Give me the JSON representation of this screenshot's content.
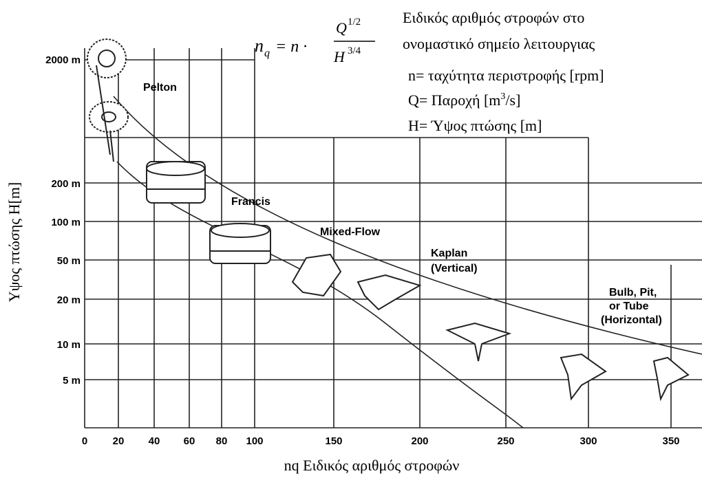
{
  "formula": {
    "lhs": "n",
    "lhs_sub": "q",
    "eq": "= n ·",
    "num": "Q",
    "num_exp": "1/2",
    "den": "H",
    "den_exp": "3/4"
  },
  "notes": {
    "line1": "Ειδικός αριθμός στροφών στο",
    "line2": "ονομαστικό σημείο λειτουργιας",
    "n": "n= ταχύτητα περιστροφής [rpm]",
    "q_pre": "Q= Παροχή [m",
    "q_exp": "3",
    "q_post": "/s]",
    "h": "H= Ύψος πτώσης [m]"
  },
  "y_axis": {
    "label": "Υψος πτώσης H[m]",
    "ticks": [
      "2000 m",
      "200 m",
      "100 m",
      "50 m",
      "20 m",
      "10 m",
      "5 m"
    ]
  },
  "x_axis": {
    "label": "nq Ειδικός αριθμός στροφών",
    "ticks": [
      "0",
      "20",
      "40",
      "60",
      "80",
      "100",
      "150",
      "200",
      "250",
      "300",
      "350"
    ]
  },
  "regions": {
    "pelton": "Pelton",
    "francis": "Francis",
    "mixed": "Mixed-Flow",
    "kaplan1": "Kaplan",
    "kaplan2": "(Vertical)",
    "bulb1": "Bulb, Pit,",
    "bulb2": "or Tube",
    "bulb3": "(Horizontal)"
  }
}
